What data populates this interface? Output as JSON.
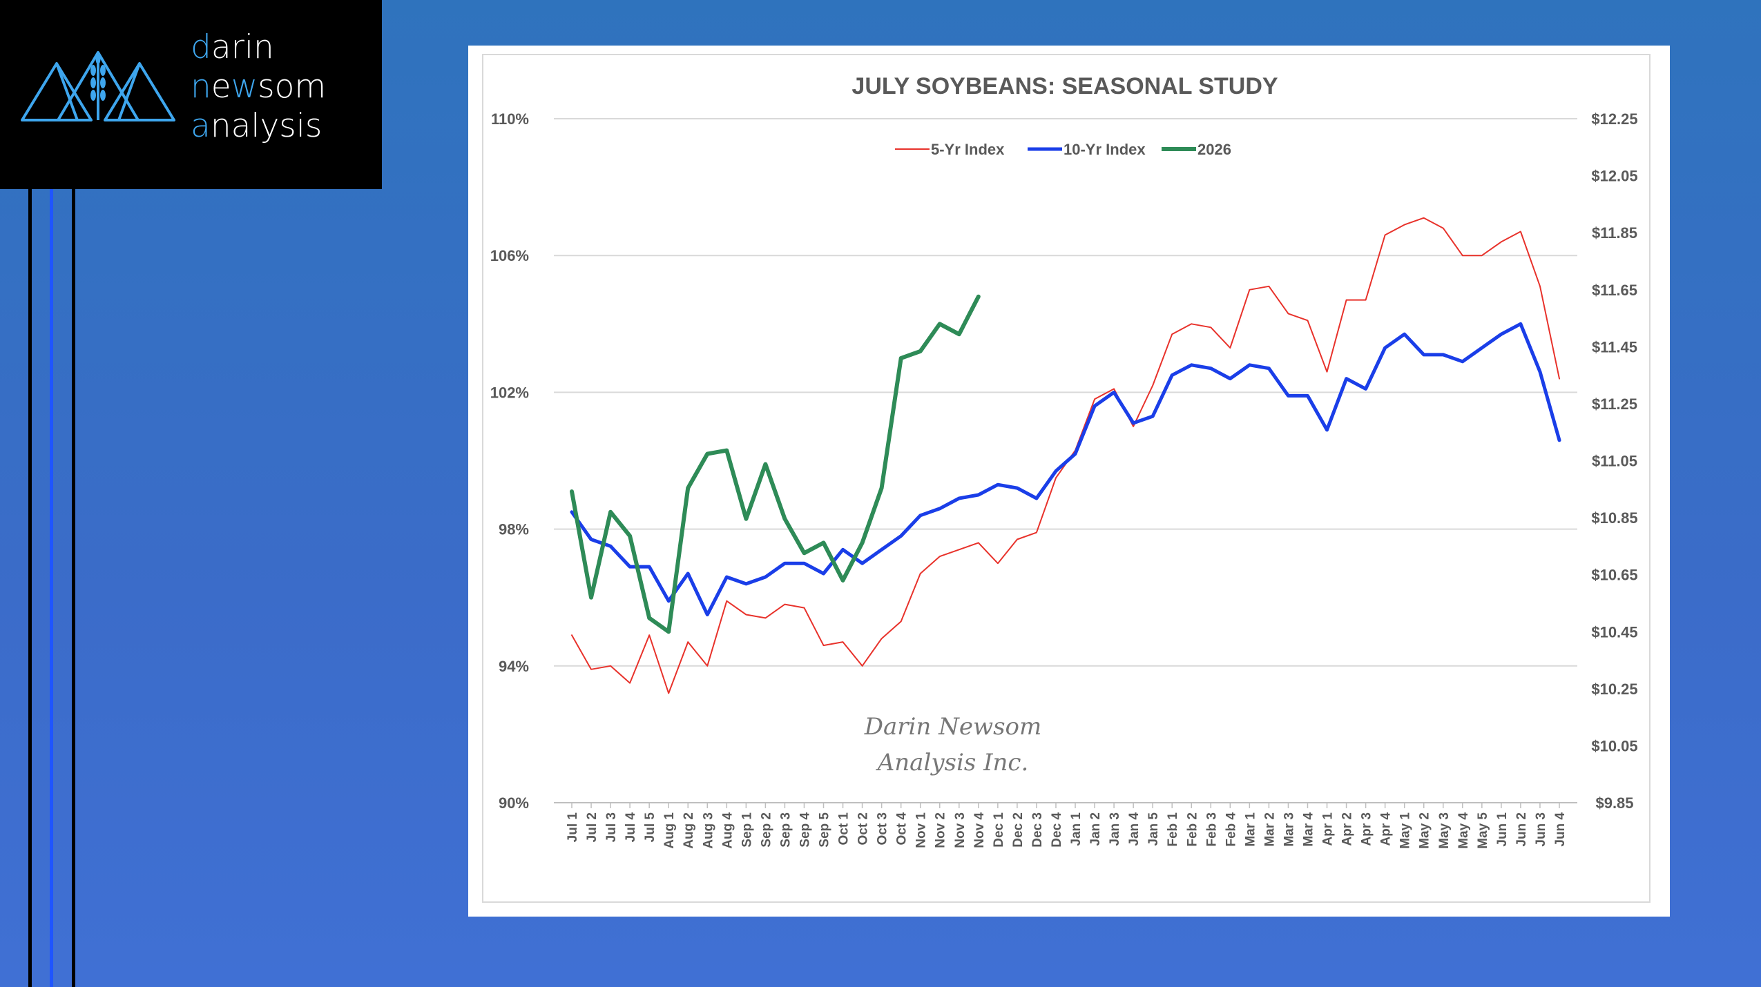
{
  "brand": {
    "line1_first": "d",
    "line1_rest": "arin",
    "line2_first": "n",
    "line2_mid1": "e",
    "line2_hl": "w",
    "line2_rest": "som",
    "line3_first": "a",
    "line3_rest": "nalysis",
    "mark_icon": "mountains-wheat-icon"
  },
  "watermark": {
    "line1": "Darin Newsom",
    "line2": "Analysis Inc."
  },
  "colors": {
    "s5": "#e8322b",
    "s10": "#1a3ee8",
    "s2026": "#2e8b57",
    "grid": "#d9d9d9",
    "text": "#595959"
  },
  "chart_data": {
    "type": "line",
    "title": "JULY SOYBEANS: SEASONAL STUDY",
    "legend_position": "top-center",
    "grid": true,
    "left_axis": {
      "ticks": [
        "110%",
        "106%",
        "102%",
        "98%",
        "94%",
        "90%"
      ],
      "min": 90,
      "max": 110
    },
    "right_axis": {
      "ticks": [
        "$12.25",
        "$12.05",
        "$11.85",
        "$11.65",
        "$11.45",
        "$11.25",
        "$11.05",
        "$10.85",
        "$10.65",
        "$10.45",
        "$10.25",
        "$10.05",
        "$9.85"
      ],
      "min": 9.85,
      "max": 12.25
    },
    "categories": [
      "Jul 1",
      "Jul 2",
      "Jul 3",
      "Jul 4",
      "Jul 5",
      "Aug 1",
      "Aug 2",
      "Aug 3",
      "Aug 4",
      "Sep 1",
      "Sep 2",
      "Sep 3",
      "Sep 4",
      "Sep 5",
      "Oct 1",
      "Oct 2",
      "Oct 3",
      "Oct 4",
      "Nov 1",
      "Nov 2",
      "Nov 3",
      "Nov 4",
      "Dec 1",
      "Dec 2",
      "Dec 3",
      "Dec 4",
      "Jan 1",
      "Jan 2",
      "Jan 3",
      "Jan 4",
      "Jan 5",
      "Feb 1",
      "Feb 2",
      "Feb 3",
      "Feb 4",
      "Mar 1",
      "Mar 2",
      "Mar 3",
      "Mar 4",
      "Apr 1",
      "Apr 2",
      "Apr 3",
      "Apr 4",
      "May 1",
      "May 2",
      "May 3",
      "May 4",
      "May 5",
      "Jun 1",
      "Jun 2",
      "Jun 3",
      "Jun 4"
    ],
    "series": [
      {
        "name": "5-Yr Index",
        "axis": "left",
        "values": [
          94.9,
          93.9,
          94.0,
          93.5,
          94.9,
          93.2,
          94.7,
          94.0,
          95.9,
          95.5,
          95.4,
          95.8,
          95.7,
          94.6,
          94.7,
          94.0,
          94.8,
          95.3,
          96.7,
          97.2,
          97.4,
          97.6,
          97.0,
          97.7,
          97.9,
          99.5,
          100.3,
          101.8,
          102.1,
          101.0,
          102.2,
          103.7,
          104.0,
          103.9,
          103.3,
          105.0,
          105.1,
          104.3,
          104.1,
          102.6,
          104.7,
          104.7,
          106.6,
          106.9,
          107.1,
          106.8,
          106.0,
          106.0,
          106.4,
          106.7,
          105.1,
          102.4
        ]
      },
      {
        "name": "10-Yr Index",
        "axis": "left",
        "values": [
          98.5,
          97.7,
          97.5,
          96.9,
          96.9,
          95.9,
          96.7,
          95.5,
          96.6,
          96.4,
          96.6,
          97.0,
          97.0,
          96.7,
          97.4,
          97.0,
          97.4,
          97.8,
          98.4,
          98.6,
          98.9,
          99.0,
          99.3,
          99.2,
          98.9,
          99.7,
          100.2,
          101.6,
          102.0,
          101.1,
          101.3,
          102.5,
          102.8,
          102.7,
          102.4,
          102.8,
          102.7,
          101.9,
          101.9,
          100.9,
          102.4,
          102.1,
          103.3,
          103.7,
          103.1,
          103.1,
          102.9,
          103.3,
          103.7,
          104.0,
          102.6,
          100.6
        ]
      },
      {
        "name": "2026",
        "axis": "left",
        "values": [
          99.1,
          96.0,
          98.5,
          97.8,
          95.4,
          95.0,
          99.2,
          100.2,
          100.3,
          98.3,
          99.9,
          98.3,
          97.3,
          97.6,
          96.5,
          97.6,
          99.2,
          103.0,
          103.2,
          104.0,
          103.7,
          104.8,
          null,
          null,
          null,
          null,
          null,
          null,
          null,
          null,
          null,
          null,
          null,
          null,
          null,
          null,
          null,
          null,
          null,
          null,
          null,
          null,
          null,
          null,
          null,
          null,
          null,
          null,
          null,
          null,
          null,
          null
        ]
      }
    ]
  }
}
